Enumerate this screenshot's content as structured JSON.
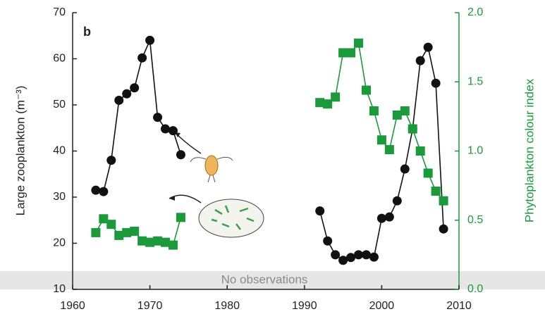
{
  "chart_data": {
    "type": "line",
    "panel_label": "b",
    "annotation": "No observations",
    "y_label": "Large zooplankton (m⁻³)",
    "y2_label": "Phytoplankton colour index",
    "x": [
      1963,
      1964,
      1965,
      1966,
      1967,
      1968,
      1969,
      1970,
      1971,
      1972,
      1973,
      1974,
      1975,
      1976,
      1977,
      1978,
      1979,
      1980,
      1981,
      1982,
      1983,
      1984,
      1985,
      1986,
      1987,
      1988,
      1989,
      1990,
      1991,
      1992,
      1993,
      1994,
      1995,
      1996,
      1997,
      1998,
      1999,
      2000,
      2001,
      2002,
      2003,
      2004,
      2005,
      2006,
      2007,
      2008
    ],
    "series": [
      {
        "color": "#111111",
        "marker": "circle",
        "values": [
          31.5,
          31.2,
          38,
          51,
          52.4,
          53.7,
          60.2,
          64,
          47.3,
          44.8,
          44.4,
          39.2,
          null,
          null,
          null,
          null,
          null,
          null,
          null,
          null,
          null,
          null,
          null,
          null,
          null,
          null,
          null,
          null,
          null,
          27,
          20.5,
          17.5,
          16.3,
          16.9,
          17.5,
          17.5,
          17,
          25.4,
          25.7,
          29.2,
          36.1,
          44.8,
          59.6,
          62.5,
          54.7,
          23.1
        ]
      },
      {
        "color": "#1a9a3a",
        "marker": "square",
        "axis": "y2",
        "values": [
          0.41,
          0.51,
          0.47,
          0.39,
          0.41,
          0.42,
          0.35,
          0.34,
          0.35,
          0.34,
          0.32,
          0.52,
          null,
          null,
          null,
          null,
          null,
          null,
          null,
          null,
          null,
          null,
          null,
          null,
          null,
          null,
          null,
          null,
          null,
          1.35,
          1.34,
          1.39,
          1.71,
          1.71,
          1.78,
          1.44,
          1.29,
          1.08,
          1.01,
          1.26,
          1.29,
          1.16,
          1.0,
          0.84,
          0.71,
          0.64
        ]
      }
    ],
    "xlim": [
      1960,
      2010
    ],
    "xticks": [
      1960,
      1970,
      1980,
      1990,
      2000,
      2010
    ],
    "ylim": [
      10,
      70
    ],
    "yticks": [
      10,
      20,
      30,
      40,
      50,
      60,
      70
    ],
    "y2lim": [
      0,
      2
    ],
    "y2ticks": [
      {
        "value": 0,
        "label": "0.0"
      },
      {
        "value": 0.5,
        "label": "0.5"
      },
      {
        "value": 1,
        "label": "1.0"
      },
      {
        "value": 1.5,
        "label": "1.5"
      },
      {
        "value": 2,
        "label": "2.0"
      }
    ],
    "y2_color": "#1a9a3a"
  }
}
